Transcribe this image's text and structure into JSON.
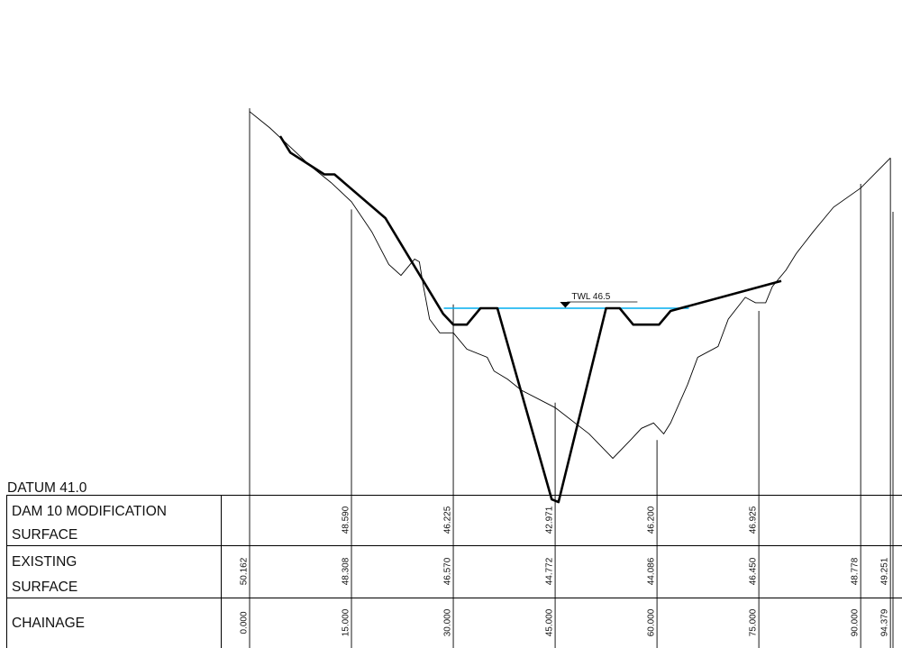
{
  "datum_label": "DATUM 41.0",
  "rows": {
    "modification": [
      "DAM 10 MODIFICATION",
      "SURFACE"
    ],
    "existing": [
      "EXISTING",
      "SURFACE"
    ],
    "chainage": "CHAINAGE"
  },
  "twl_label": "TWL 46.5",
  "colors": {
    "line": "#000000",
    "water": "#00aeef"
  },
  "chart_data": {
    "type": "line",
    "title": "",
    "xlabel": "CHAINAGE",
    "ylabel": "",
    "datum": 41.0,
    "twl": 46.5,
    "stations": [
      {
        "chainage": "0.000",
        "existing": "50.162",
        "modification": ""
      },
      {
        "chainage": "15.000",
        "existing": "48.308",
        "modification": "48.590"
      },
      {
        "chainage": "30.000",
        "existing": "46.570",
        "modification": "46.225"
      },
      {
        "chainage": "45.000",
        "existing": "44.772",
        "modification": "42.971"
      },
      {
        "chainage": "60.000",
        "existing": "44.086",
        "modification": "46.200"
      },
      {
        "chainage": "75.000",
        "existing": "46.450",
        "modification": "46.925"
      },
      {
        "chainage": "90.000",
        "existing": "48.778",
        "modification": ""
      },
      {
        "chainage": "94.379",
        "existing": "49.251",
        "modification": ""
      }
    ],
    "existing_profile": [
      [
        0,
        50.1
      ],
      [
        3,
        49.8
      ],
      [
        6,
        49.45
      ],
      [
        9,
        49.1
      ],
      [
        12,
        48.8
      ],
      [
        15,
        48.45
      ],
      [
        18,
        47.9
      ],
      [
        20.5,
        47.3
      ],
      [
        22.3,
        47.1
      ],
      [
        24.3,
        47.4
      ],
      [
        25,
        47.35
      ],
      [
        25.6,
        46.9
      ],
      [
        26.5,
        46.3
      ],
      [
        28,
        46.05
      ],
      [
        30,
        46.05
      ],
      [
        32,
        45.75
      ],
      [
        35,
        45.6
      ],
      [
        36,
        45.35
      ],
      [
        38,
        45.2
      ],
      [
        40,
        45.0
      ],
      [
        45,
        44.68
      ],
      [
        50,
        44.2
      ],
      [
        53.5,
        43.75
      ],
      [
        56.2,
        44.1
      ],
      [
        57.7,
        44.3
      ],
      [
        59.5,
        44.4
      ],
      [
        61,
        44.2
      ],
      [
        62,
        44.4
      ],
      [
        64.5,
        45.1
      ],
      [
        66,
        45.6
      ],
      [
        69,
        45.8
      ],
      [
        70.5,
        46.3
      ],
      [
        73,
        46.7
      ],
      [
        74.5,
        46.6
      ],
      [
        76,
        46.6
      ],
      [
        77,
        46.9
      ],
      [
        79,
        47.2
      ],
      [
        80.5,
        47.5
      ],
      [
        83,
        47.9
      ],
      [
        86,
        48.35
      ],
      [
        90,
        48.7
      ],
      [
        94.379,
        49.25
      ]
    ],
    "modification_profile": [
      [
        4.5,
        49.65
      ],
      [
        6,
        49.35
      ],
      [
        11,
        48.95
      ],
      [
        12.5,
        48.95
      ],
      [
        20,
        48.15
      ],
      [
        28.5,
        46.4
      ],
      [
        30,
        46.2
      ],
      [
        32,
        46.2
      ],
      [
        34,
        46.5
      ],
      [
        36.5,
        46.5
      ],
      [
        44.5,
        43.0
      ],
      [
        45.5,
        42.95
      ],
      [
        52.5,
        46.5
      ],
      [
        54.5,
        46.5
      ],
      [
        56.5,
        46.2
      ],
      [
        60.3,
        46.2
      ],
      [
        62,
        46.45
      ],
      [
        78.3,
        47.0
      ]
    ]
  }
}
